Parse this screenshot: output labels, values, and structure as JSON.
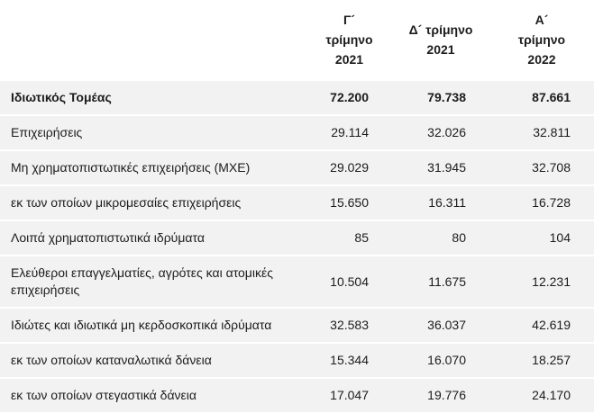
{
  "table": {
    "columns": [
      "Γ´\nτρίμηνο\n2021",
      "Δ´ τρίμηνο\n2021",
      "Α´\nτρίμηνο\n2022"
    ],
    "rows": [
      {
        "label": "Ιδιωτικός Τομέας",
        "values": [
          "72.200",
          "79.738",
          "87.661"
        ]
      },
      {
        "label": "Επιχειρήσεις",
        "values": [
          "29.114",
          "32.026",
          "32.811"
        ]
      },
      {
        "label": "Μη χρηματοπιστωτικές επιχειρήσεις (ΜΧΕ)",
        "values": [
          "29.029",
          "31.945",
          "32.708"
        ]
      },
      {
        "label": "εκ των οποίων μικρομεσαίες επιχειρήσεις",
        "values": [
          "15.650",
          "16.311",
          "16.728"
        ]
      },
      {
        "label": "Λοιπά χρηματοπιστωτικά ιδρύματα",
        "values": [
          "85",
          "80",
          "104"
        ]
      },
      {
        "label": "Ελεύθεροι επαγγελματίες, αγρότες και ατομικές επιχειρήσεις",
        "values": [
          "10.504",
          "11.675",
          "12.231"
        ]
      },
      {
        "label": "Ιδιώτες και ιδιωτικά μη κερδοσκοπικά ιδρύματα",
        "values": [
          "32.583",
          "36.037",
          "42.619"
        ]
      },
      {
        "label": "εκ των οποίων καταναλωτικά δάνεια",
        "values": [
          "15.344",
          "16.070",
          "18.257"
        ]
      },
      {
        "label": "εκ των οποίων στεγαστικά δάνεια",
        "values": [
          "17.047",
          "19.776",
          "24.170"
        ]
      }
    ],
    "colors": {
      "row_bg": "#f2f2f2",
      "separator": "#ffffff",
      "text": "#1c1c1e"
    }
  },
  "chart_data": {
    "type": "table",
    "title": "",
    "categories": [
      "Γ´ τρίμηνο 2021",
      "Δ´ τρίμηνο 2021",
      "Α´ τρίμηνο 2022"
    ],
    "series": [
      {
        "name": "Ιδιωτικός Τομέας",
        "values": [
          72200,
          79738,
          87661
        ]
      },
      {
        "name": "Επιχειρήσεις",
        "values": [
          29114,
          32026,
          32811
        ]
      },
      {
        "name": "Μη χρηματοπιστωτικές επιχειρήσεις (ΜΧΕ)",
        "values": [
          29029,
          31945,
          32708
        ]
      },
      {
        "name": "εκ των οποίων μικρομεσαίες επιχειρήσεις",
        "values": [
          15650,
          16311,
          16728
        ]
      },
      {
        "name": "Λοιπά χρηματοπιστωτικά ιδρύματα",
        "values": [
          85,
          80,
          104
        ]
      },
      {
        "name": "Ελεύθεροι επαγγελματίες, αγρότες και ατομικές επιχειρήσεις",
        "values": [
          10504,
          11675,
          12231
        ]
      },
      {
        "name": "Ιδιώτες και ιδιωτικά μη κερδοσκοπικά ιδρύματα",
        "values": [
          32583,
          36037,
          42619
        ]
      },
      {
        "name": "εκ των οποίων καταναλωτικά δάνεια",
        "values": [
          15344,
          16070,
          18257
        ]
      },
      {
        "name": "εκ των οποίων στεγαστικά δάνεια",
        "values": [
          17047,
          19776,
          24170
        ]
      }
    ]
  }
}
